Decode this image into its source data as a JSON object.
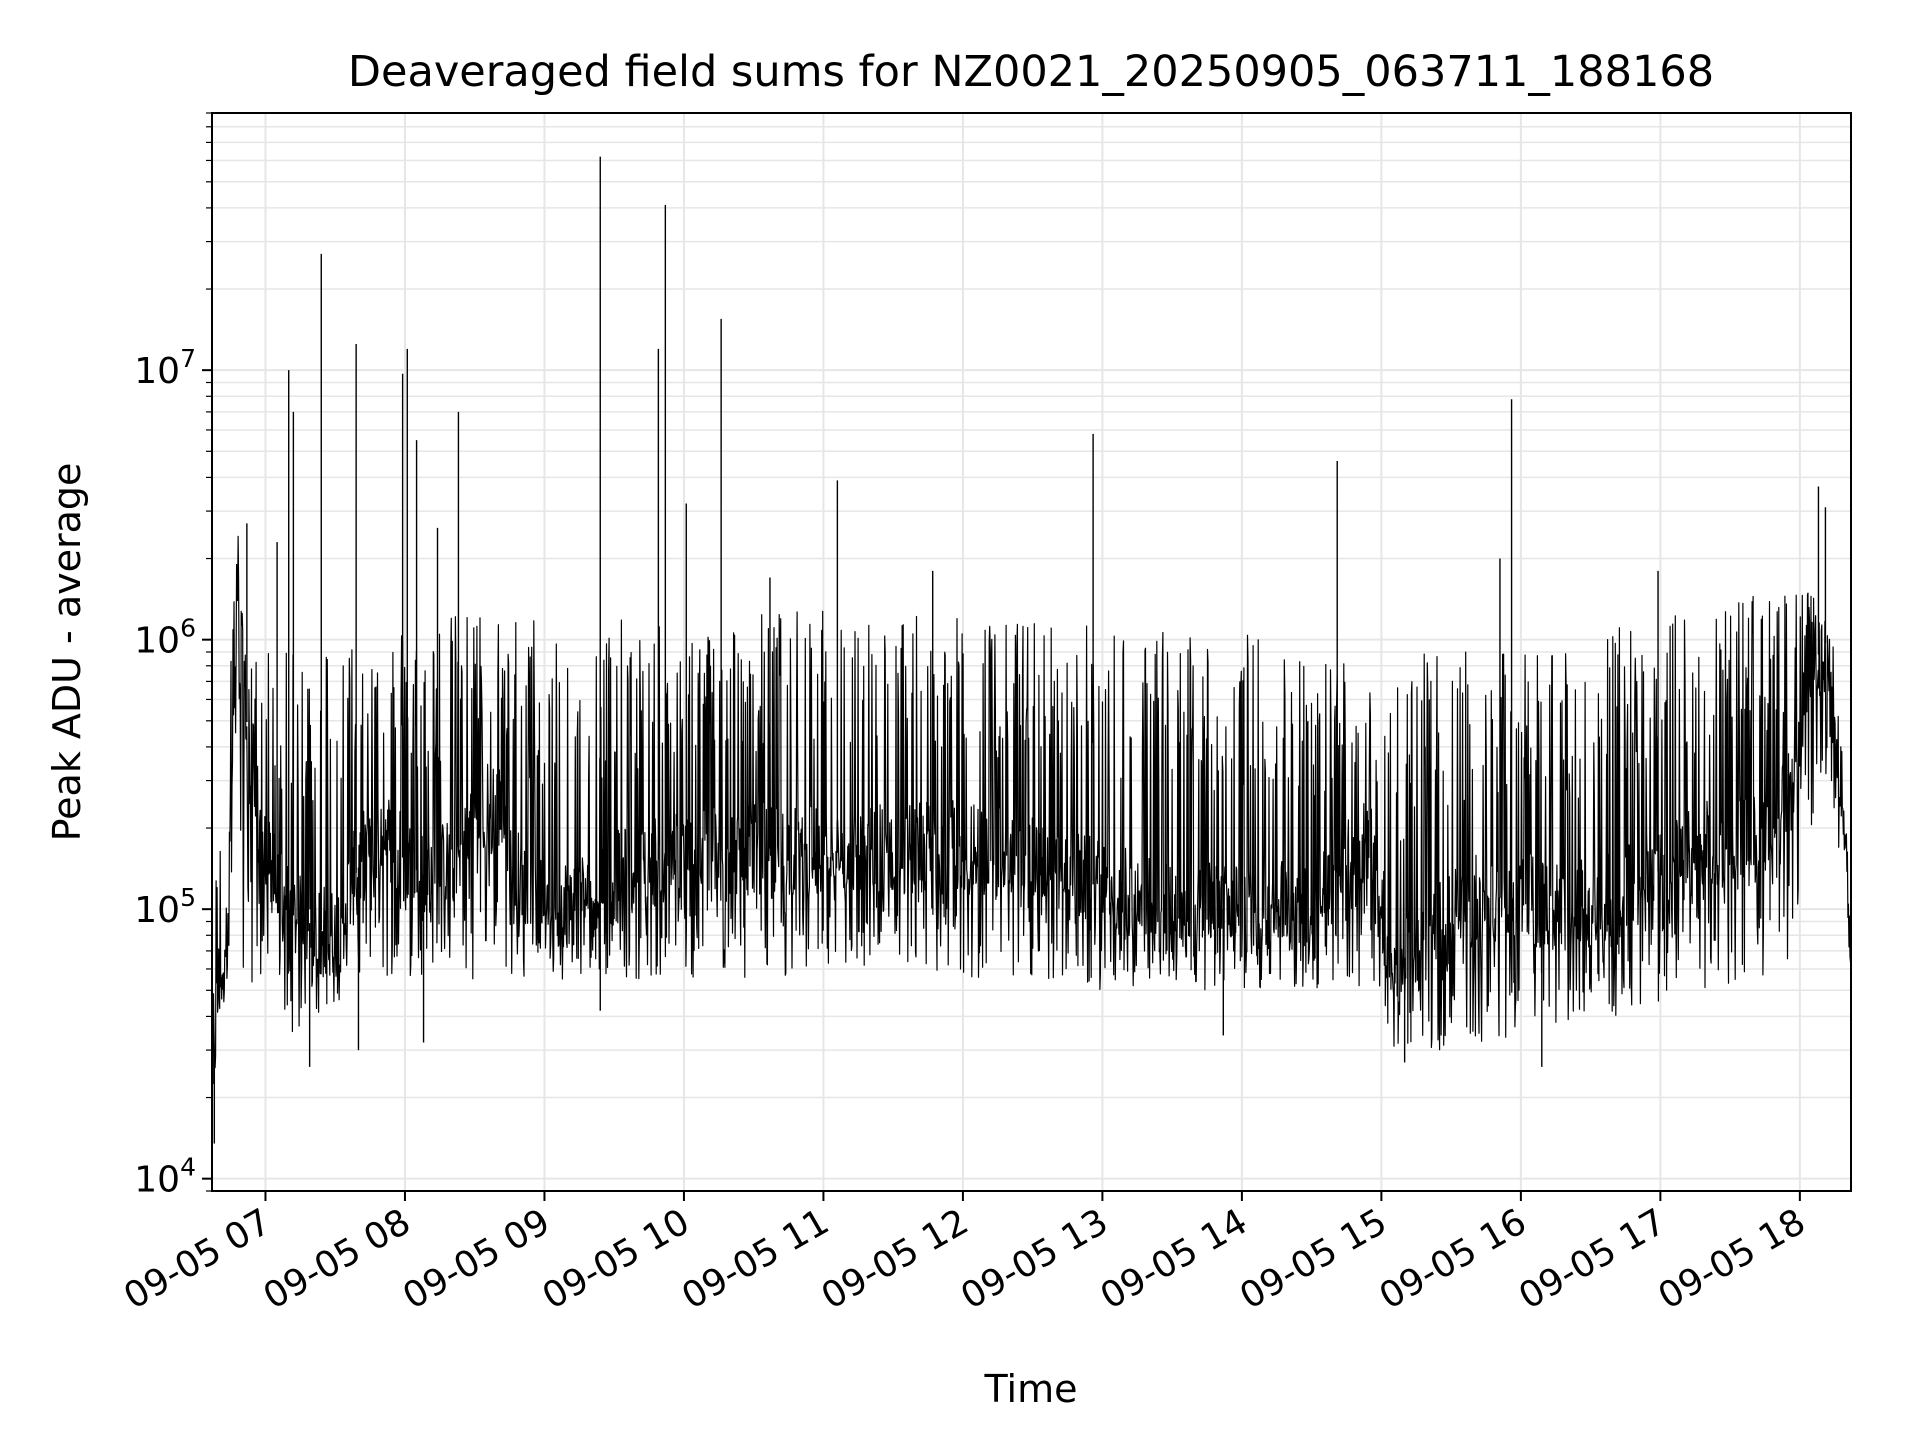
{
  "chart_data": {
    "type": "line",
    "title": "Deaveraged field sums for NZ0021_20250905_063711_188168",
    "xlabel": "Time",
    "ylabel": "Peak ADU - average",
    "x_scale": "time",
    "y_scale": "log",
    "xlim": [
      "2025-09-05 06:37",
      "2025-09-05 18:22"
    ],
    "ylim": [
      9000,
      90000000
    ],
    "grid": true,
    "line_color": "#000000",
    "grid_color": "#e6e6e6",
    "x_ticks": [
      {
        "value": "2025-09-05 07:00",
        "label": "09-05 07"
      },
      {
        "value": "2025-09-05 08:00",
        "label": "09-05 08"
      },
      {
        "value": "2025-09-05 09:00",
        "label": "09-05 09"
      },
      {
        "value": "2025-09-05 10:00",
        "label": "09-05 10"
      },
      {
        "value": "2025-09-05 11:00",
        "label": "09-05 11"
      },
      {
        "value": "2025-09-05 12:00",
        "label": "09-05 12"
      },
      {
        "value": "2025-09-05 13:00",
        "label": "09-05 13"
      },
      {
        "value": "2025-09-05 14:00",
        "label": "09-05 14"
      },
      {
        "value": "2025-09-05 15:00",
        "label": "09-05 15"
      },
      {
        "value": "2025-09-05 16:00",
        "label": "09-05 16"
      },
      {
        "value": "2025-09-05 17:00",
        "label": "09-05 17"
      },
      {
        "value": "2025-09-05 18:00",
        "label": "09-05 18"
      }
    ],
    "y_ticks": [
      {
        "value": 10000,
        "base": "10",
        "exp": "4"
      },
      {
        "value": 100000,
        "base": "10",
        "exp": "5"
      },
      {
        "value": 1000000,
        "base": "10",
        "exp": "6"
      },
      {
        "value": 10000000,
        "base": "10",
        "exp": "7"
      }
    ],
    "series": [
      {
        "x": [
          "2025-09-05 06:37",
          "2025-09-05 06:38",
          "2025-09-05 06:40",
          "2025-09-05 06:42",
          "2025-09-05 06:45",
          "2025-09-05 06:48",
          "2025-09-05 06:51",
          "2025-09-05 06:53",
          "2025-09-05 06:56",
          "2025-09-05 07:00",
          "2025-09-05 07:04",
          "2025-09-05 07:08",
          "2025-09-05 07:10",
          "2025-09-05 07:14",
          "2025-09-05 07:18",
          "2025-09-05 07:22",
          "2025-09-05 07:30",
          "2025-09-05 07:38",
          "2025-09-05 07:45",
          "2025-09-05 07:52",
          "2025-09-05 08:00",
          "2025-09-05 08:10",
          "2025-09-05 08:20",
          "2025-09-05 08:30",
          "2025-09-05 08:40",
          "2025-09-05 08:50",
          "2025-09-05 09:00",
          "2025-09-05 09:15",
          "2025-09-05 09:30",
          "2025-09-05 09:45",
          "2025-09-05 10:00",
          "2025-09-05 10:30",
          "2025-09-05 11:00",
          "2025-09-05 11:30",
          "2025-09-05 12:00",
          "2025-09-05 12:30",
          "2025-09-05 13:00",
          "2025-09-05 13:30",
          "2025-09-05 14:00",
          "2025-09-05 14:30",
          "2025-09-05 14:55",
          "2025-09-05 15:05",
          "2025-09-05 15:20",
          "2025-09-05 15:40",
          "2025-09-05 16:00",
          "2025-09-05 16:20",
          "2025-09-05 16:40",
          "2025-09-05 17:00",
          "2025-09-05 17:20",
          "2025-09-05 17:40",
          "2025-09-05 17:55",
          "2025-09-05 18:05",
          "2025-09-05 18:12",
          "2025-09-05 18:18",
          "2025-09-05 18:22"
        ],
        "y": [
          14000,
          30000,
          55000,
          60000,
          250000,
          1200000,
          700000,
          350000,
          250000,
          150000,
          130000,
          110000,
          100000,
          90000,
          90000,
          85000,
          80000,
          130000,
          180000,
          200000,
          150000,
          130000,
          150000,
          230000,
          250000,
          120000,
          100000,
          110000,
          130000,
          150000,
          160000,
          170000,
          160000,
          170000,
          170000,
          150000,
          120000,
          100000,
          100000,
          110000,
          180000,
          60000,
          80000,
          110000,
          110000,
          100000,
          110000,
          140000,
          170000,
          180000,
          250000,
          800000,
          1000000,
          300000,
          60000
        ],
        "max_envelope": [
          14000,
          100000,
          300000,
          500000,
          1200000,
          2700000,
          1000000,
          800000,
          900000,
          1000000,
          1000000,
          900000,
          900000,
          900000,
          1000000,
          1100000,
          1100000,
          1100000,
          1100000,
          1100000,
          1150000,
          1200000,
          1250000,
          1300000,
          1300000,
          1300000,
          1250000,
          1200000,
          1200000,
          1150000,
          1100000,
          1300000,
          1300000,
          1250000,
          1200000,
          1200000,
          1150000,
          1100000,
          1100000,
          900000,
          900000,
          800000,
          900000,
          900000,
          900000,
          1000000,
          1100000,
          1200000,
          1400000,
          1500000,
          1500000,
          1500000,
          1200000,
          400000,
          60000
        ],
        "min_envelope": [
          14000,
          30000,
          45000,
          50000,
          60000,
          60000,
          60000,
          55000,
          50000,
          45000,
          40000,
          38000,
          35000,
          35000,
          35000,
          40000,
          45000,
          50000,
          55000,
          55000,
          55000,
          55000,
          55000,
          55000,
          55000,
          55000,
          55000,
          55000,
          55000,
          55000,
          55000,
          55000,
          55000,
          55000,
          55000,
          55000,
          50000,
          50000,
          50000,
          50000,
          50000,
          30000,
          30000,
          30000,
          35000,
          35000,
          40000,
          45000,
          50000,
          55000,
          60000,
          200000,
          300000,
          100000,
          60000
        ],
        "spikes": [
          {
            "x": "2025-09-05 06:52",
            "y": 2700000
          },
          {
            "x": "2025-09-05 07:05",
            "y": 2300000
          },
          {
            "x": "2025-09-05 07:10",
            "y": 10000000
          },
          {
            "x": "2025-09-05 07:12",
            "y": 7000000
          },
          {
            "x": "2025-09-05 07:24",
            "y": 27000000
          },
          {
            "x": "2025-09-05 07:39",
            "y": 12500000
          },
          {
            "x": "2025-09-05 07:59",
            "y": 9700000
          },
          {
            "x": "2025-09-05 08:01",
            "y": 12000000
          },
          {
            "x": "2025-09-05 08:05",
            "y": 5500000
          },
          {
            "x": "2025-09-05 08:14",
            "y": 2600000
          },
          {
            "x": "2025-09-05 08:23",
            "y": 7000000
          },
          {
            "x": "2025-09-05 09:24",
            "y": 62000000
          },
          {
            "x": "2025-09-05 09:49",
            "y": 12000000
          },
          {
            "x": "2025-09-05 09:52",
            "y": 41000000
          },
          {
            "x": "2025-09-05 10:01",
            "y": 3200000
          },
          {
            "x": "2025-09-05 10:16",
            "y": 15500000
          },
          {
            "x": "2025-09-05 10:37",
            "y": 1700000
          },
          {
            "x": "2025-09-05 11:06",
            "y": 3900000
          },
          {
            "x": "2025-09-05 11:47",
            "y": 1800000
          },
          {
            "x": "2025-09-05 12:56",
            "y": 5800000
          },
          {
            "x": "2025-09-05 14:41",
            "y": 4600000
          },
          {
            "x": "2025-09-05 15:51",
            "y": 2000000
          },
          {
            "x": "2025-09-05 15:56",
            "y": 7800000
          },
          {
            "x": "2025-09-05 16:59",
            "y": 1800000
          },
          {
            "x": "2025-09-05 18:08",
            "y": 3700000
          },
          {
            "x": "2025-09-05 18:11",
            "y": 3100000
          }
        ],
        "dips": [
          {
            "x": "2025-09-05 06:38",
            "y": 13500
          },
          {
            "x": "2025-09-05 07:19",
            "y": 26000
          },
          {
            "x": "2025-09-05 07:40",
            "y": 30000
          },
          {
            "x": "2025-09-05 08:08",
            "y": 32000
          },
          {
            "x": "2025-09-05 09:24",
            "y": 42000
          },
          {
            "x": "2025-09-05 13:52",
            "y": 34000
          },
          {
            "x": "2025-09-05 15:10",
            "y": 27000
          },
          {
            "x": "2025-09-05 16:09",
            "y": 26000
          }
        ]
      }
    ]
  }
}
